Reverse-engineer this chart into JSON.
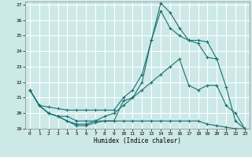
{
  "xlabel": "Humidex (Indice chaleur)",
  "xlim": [
    -0.5,
    23.5
  ],
  "ylim": [
    19,
    27.2
  ],
  "yticks": [
    19,
    20,
    21,
    22,
    23,
    24,
    25,
    26,
    27
  ],
  "xticks": [
    0,
    1,
    2,
    3,
    4,
    5,
    6,
    7,
    8,
    9,
    10,
    11,
    12,
    13,
    14,
    15,
    16,
    17,
    18,
    19,
    20,
    21,
    22,
    23
  ],
  "background_color": "#cce9e8",
  "grid_color": "#ffffff",
  "line_color": "#1a7070",
  "curves": [
    {
      "x": [
        0,
        1,
        2,
        3,
        4,
        5,
        6,
        7,
        8,
        9,
        10,
        11,
        12,
        13,
        14,
        15,
        16,
        17,
        18,
        19,
        20,
        21,
        22,
        23
      ],
      "y": [
        21.5,
        20.5,
        20.4,
        20.3,
        20.2,
        20.2,
        20.2,
        20.2,
        20.2,
        20.2,
        21.0,
        21.5,
        22.5,
        24.7,
        27.1,
        26.5,
        25.5,
        24.7,
        24.5,
        23.6,
        23.5,
        21.7,
        19.5,
        19.0
      ],
      "has_markers": true
    },
    {
      "x": [
        0,
        1,
        2,
        3,
        4,
        5,
        6,
        7,
        8,
        9,
        10,
        11,
        12,
        13,
        14,
        15,
        16,
        17,
        18,
        19,
        20
      ],
      "y": [
        21.5,
        20.5,
        20.0,
        19.8,
        19.8,
        19.5,
        19.5,
        19.5,
        19.5,
        19.5,
        20.8,
        21.0,
        22.0,
        24.7,
        26.6,
        25.5,
        25.0,
        24.7,
        24.7,
        24.6,
        23.5
      ],
      "has_markers": true
    },
    {
      "x": [
        0,
        1,
        2,
        3,
        4,
        5,
        6,
        7,
        8,
        9,
        10,
        11,
        12,
        13,
        14,
        15,
        16,
        17,
        18,
        19,
        20,
        21,
        22,
        23
      ],
      "y": [
        21.5,
        20.5,
        20.0,
        19.8,
        19.5,
        19.2,
        19.2,
        19.4,
        19.5,
        19.5,
        19.5,
        19.5,
        19.5,
        19.5,
        19.5,
        19.5,
        19.5,
        19.5,
        19.5,
        19.3,
        19.2,
        19.1,
        19.0,
        19.0
      ],
      "has_markers": true
    },
    {
      "x": [
        0,
        1,
        2,
        3,
        4,
        5,
        6,
        7,
        8,
        9,
        10,
        11,
        12,
        13,
        14,
        15,
        16,
        17,
        18,
        19,
        20,
        21,
        22,
        23
      ],
      "y": [
        21.5,
        20.5,
        20.0,
        19.8,
        19.5,
        19.3,
        19.3,
        19.5,
        19.8,
        20.0,
        20.5,
        21.0,
        21.5,
        22.0,
        22.5,
        23.0,
        23.5,
        21.8,
        21.5,
        21.8,
        21.8,
        20.5,
        20.0,
        19.0
      ],
      "has_markers": true
    }
  ]
}
